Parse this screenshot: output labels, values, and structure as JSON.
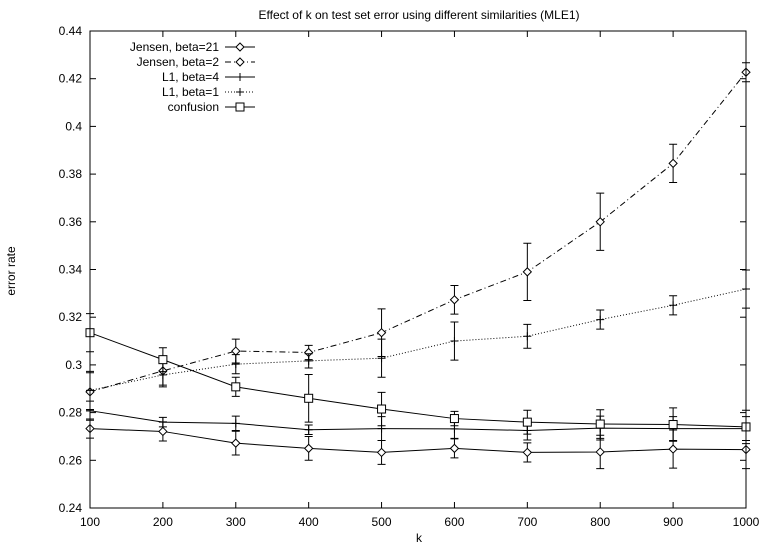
{
  "chart_data": {
    "type": "line",
    "title": "Effect of k on test set error using different similarities (MLE1)",
    "xlabel": "k",
    "ylabel": "error rate",
    "xlim": [
      100,
      1000
    ],
    "ylim": [
      0.24,
      0.44
    ],
    "x_ticks": [
      "100",
      "200",
      "300",
      "400",
      "500",
      "600",
      "700",
      "800",
      "900",
      "1000"
    ],
    "y_ticks": [
      "0.24",
      "0.26",
      "0.28",
      "0.3",
      "0.32",
      "0.34",
      "0.36",
      "0.38",
      "0.4",
      "0.42",
      "0.44"
    ],
    "grid": false,
    "legend_position": "top-left",
    "x": [
      100,
      200,
      300,
      400,
      500,
      600,
      700,
      800,
      900,
      1000
    ],
    "series": [
      {
        "name": "Jensen, beta=21",
        "marker": "diamond",
        "dash": "solid",
        "values": [
          0.2733,
          0.2721,
          0.2672,
          0.265,
          0.2633,
          0.265,
          0.2633,
          0.2635,
          0.2647,
          0.2645
        ],
        "errors": [
          0.004,
          0.004,
          0.005,
          0.005,
          0.005,
          0.004,
          0.004,
          0.007,
          0.008,
          0.008
        ]
      },
      {
        "name": "Jensen, beta=2",
        "marker": "diamond",
        "dash": "dashdot",
        "values": [
          0.2887,
          0.2975,
          0.3058,
          0.3052,
          0.3135,
          0.3273,
          0.339,
          0.36,
          0.3845,
          0.4227
        ],
        "errors": [
          0.008,
          0.006,
          0.005,
          0.003,
          0.01,
          0.006,
          0.012,
          0.012,
          0.008,
          0.004
        ]
      },
      {
        "name": "L1, beta=4",
        "marker": "plus",
        "dash": "solid",
        "values": [
          0.2808,
          0.276,
          0.2755,
          0.2728,
          0.2733,
          0.2732,
          0.2725,
          0.2735,
          0.2733,
          0.2733
        ],
        "errors": [
          0.004,
          0.002,
          0.003,
          0.002,
          0.005,
          0.004,
          0.004,
          0.005,
          0.005,
          0.005
        ]
      },
      {
        "name": "L1, beta=1",
        "marker": "plus",
        "dash": "dotted",
        "values": [
          0.2893,
          0.2958,
          0.3003,
          0.3017,
          0.3028,
          0.31,
          0.312,
          0.319,
          0.325,
          0.3318
        ],
        "errors": [
          0.008,
          0.005,
          0.004,
          0.003,
          0.008,
          0.008,
          0.005,
          0.004,
          0.004,
          0.008
        ]
      },
      {
        "name": "confusion",
        "marker": "square",
        "dash": "solid",
        "values": [
          0.3135,
          0.3022,
          0.2908,
          0.286,
          0.2815,
          0.2775,
          0.276,
          0.2752,
          0.275,
          0.274
        ],
        "errors": [
          0.008,
          0.005,
          0.004,
          0.01,
          0.007,
          0.003,
          0.005,
          0.006,
          0.007,
          0.007
        ]
      }
    ]
  }
}
